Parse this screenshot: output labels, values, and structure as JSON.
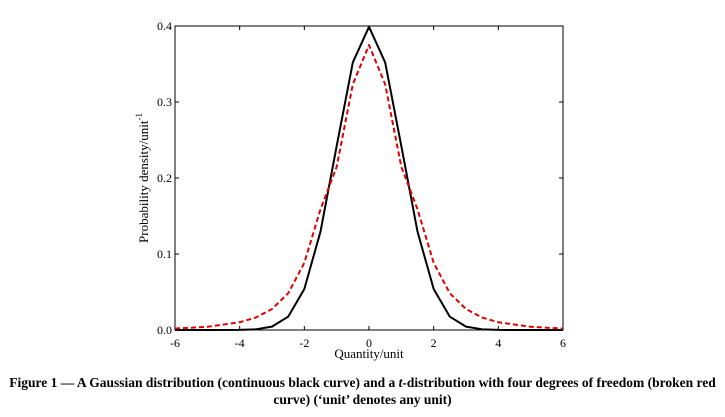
{
  "chart_data": {
    "type": "line",
    "xlabel": "Quantity/unit",
    "ylabel": "Probability density/unit",
    "ylabel_superscript": "-1",
    "xlim": [
      -6,
      6
    ],
    "ylim": [
      0,
      0.4
    ],
    "xticks": [
      "-6",
      "-4",
      "-2",
      "0",
      "2",
      "4",
      "6"
    ],
    "yticks": [
      "0.0",
      "0.1",
      "0.2",
      "0.3",
      "0.4"
    ],
    "grid": false,
    "series": [
      {
        "color": "#000000",
        "style": "solid",
        "x": [
          -6,
          -5,
          -4,
          -3.5,
          -3,
          -2.5,
          -2,
          -1.5,
          -1,
          -0.5,
          0,
          0.5,
          1,
          1.5,
          2,
          2.5,
          3,
          3.5,
          4,
          5,
          6
        ],
        "y": [
          0.0,
          0.0,
          0.0001,
          0.0009,
          0.0044,
          0.0175,
          0.054,
          0.1295,
          0.242,
          0.3521,
          0.3989,
          0.3521,
          0.242,
          0.1295,
          0.054,
          0.0175,
          0.0044,
          0.0009,
          0.0001,
          0.0,
          0.0
        ]
      },
      {
        "color": "#e00000",
        "style": "dashed",
        "x": [
          -6,
          -5,
          -4,
          -3.5,
          -3,
          -2.5,
          -2,
          -1.5,
          -1,
          -0.5,
          0,
          0.5,
          1,
          1.5,
          2,
          2.5,
          3,
          3.5,
          4,
          5,
          6
        ],
        "y": [
          0.0019,
          0.0042,
          0.0102,
          0.0164,
          0.0276,
          0.0483,
          0.0884,
          0.1589,
          0.2147,
          0.3232,
          0.375,
          0.3232,
          0.2147,
          0.1589,
          0.0884,
          0.0483,
          0.0276,
          0.0164,
          0.0102,
          0.0042,
          0.0019
        ]
      }
    ]
  },
  "caption": {
    "prefix": "Figure 1 — A Gaussian distribution (continuous black curve) and a ",
    "italic": "t",
    "suffix": "-distribution with four degrees of freedom (broken red curve) (‘unit’ denotes any unit)"
  }
}
